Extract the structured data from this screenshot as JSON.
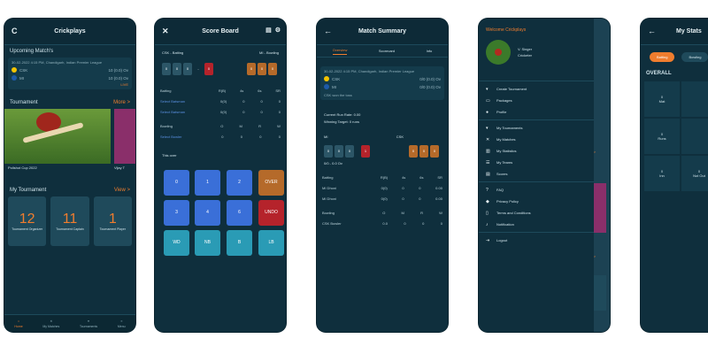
{
  "colors": {
    "bg": "#0f2f3d",
    "accent": "#f07d2e",
    "blue_key": "#3a6fd8",
    "teal_key": "#2a9bb5",
    "brown_key": "#b56a2a",
    "red_key": "#b5232b"
  },
  "phone1": {
    "title": "Crickplays",
    "upcoming": "Upcoming Match's",
    "match_meta": "30-02-2022 4:15 PM, Chandigarh, Indian Premier League",
    "teams": [
      {
        "name": "CSK",
        "score": "10 (0.0) Ov"
      },
      {
        "name": "MI",
        "score": "10 (0.0) Ov"
      }
    ],
    "live_link": "LIVE",
    "tournament_section": "Tournament",
    "more_label": "More >",
    "tournament_cards": [
      "Pollshot Cup 2022",
      "Vijay T"
    ],
    "my_tournament": "My Tournament",
    "view_label": "View >",
    "stats": [
      {
        "value": "12",
        "label": "Tournament Organizer"
      },
      {
        "value": "11",
        "label": "Tournament Captain"
      },
      {
        "value": "1",
        "label": "Tournament Player"
      }
    ],
    "nav": [
      "Home",
      "My Matches",
      "Tournaments",
      "Menu"
    ]
  },
  "phone2": {
    "title": "Score Board",
    "team_left": "CSK - Batting",
    "team_right": "MI - Bowling",
    "balls_left": [
      "0",
      "0",
      "0",
      "-",
      "0"
    ],
    "balls_right": [
      "0",
      "0",
      "0"
    ],
    "batting_head": [
      "Batting",
      "R(B)",
      "4s",
      "6s",
      "SR"
    ],
    "batters": [
      {
        "name": "Select Batsman",
        "rb": "0(0)",
        "f": "0",
        "s": "0",
        "sr": "0"
      },
      {
        "name": "Select Batsman",
        "rb": "0(0)",
        "f": "0",
        "s": "0",
        "sr": "0"
      }
    ],
    "bowling_head": [
      "Bowling",
      "O",
      "M",
      "R",
      "W"
    ],
    "bowler": {
      "name": "Select Bowler",
      "o": "0",
      "m": "0",
      "r": "0",
      "w": "0"
    },
    "this_over": "This over",
    "keys": [
      "0",
      "1",
      "2",
      "OVER",
      "3",
      "4",
      "6",
      "UNDO",
      "WD",
      "NB",
      "B",
      "LB"
    ]
  },
  "phone3": {
    "title": "Match Summary",
    "tabs": [
      "Overview",
      "Scorecard",
      "Info"
    ],
    "meta": "30-02-2022 4:15 PM, Chandigarh, Indian Premier League",
    "teams": [
      {
        "name": "CSK",
        "score": "0/0 (0.0) Ov"
      },
      {
        "name": "MI",
        "score": "0/0 (0.0) Ov"
      }
    ],
    "status": "CSK won the toss",
    "current_rr": "Current Run Rate: 0.00",
    "target": "Winning Target: 0 runs",
    "team_a": "MI",
    "team_b": "CSK",
    "balls_a": [
      "0",
      "0",
      "0",
      "1"
    ],
    "balls_b": [
      "0",
      "0",
      "0"
    ],
    "score_line": "0/0 - 0.0 Ov",
    "bat_head": [
      "Batting",
      "R(B)",
      "4s",
      "6s",
      "SR"
    ],
    "batters": [
      {
        "name": "MI Dhoni",
        "rb": "0(0)",
        "f": "0",
        "s": "0",
        "sr": "0.00"
      },
      {
        "name": "MI Dhoni",
        "rb": "0(0)",
        "f": "0",
        "s": "0",
        "sr": "0.00"
      }
    ],
    "bowl_head": [
      "Bowling",
      "O",
      "M",
      "R",
      "W"
    ],
    "bowler": {
      "name": "CSK Bowler",
      "o": "0.0",
      "m": "0",
      "r": "0",
      "w": "0"
    }
  },
  "phone4": {
    "welcome": "Welcome Crickplays",
    "user_name": "V. Singer",
    "user_role": "Cricketer",
    "menu": [
      "Create Tournament",
      "Packages",
      "Profile",
      "My Tournaments",
      "My Matches",
      "My Statistics",
      "My Teams",
      "Scores",
      "FAQ",
      "Privacy Policy",
      "Terms and Conditions",
      "Notification",
      "Logout"
    ],
    "side_labels": [
      "View >",
      "More >",
      "View >"
    ]
  },
  "phone5": {
    "title": "My Stats",
    "tabs": [
      "Batting",
      "Bowling"
    ],
    "overall": "OVERALL",
    "grid": [
      [
        "0",
        "Mat"
      ],
      [
        "0",
        "Runs"
      ],
      [
        "0",
        "Inn"
      ],
      [
        "",
        ""
      ],
      [
        "0",
        "Not Out"
      ],
      [
        "",
        ""
      ]
    ]
  }
}
